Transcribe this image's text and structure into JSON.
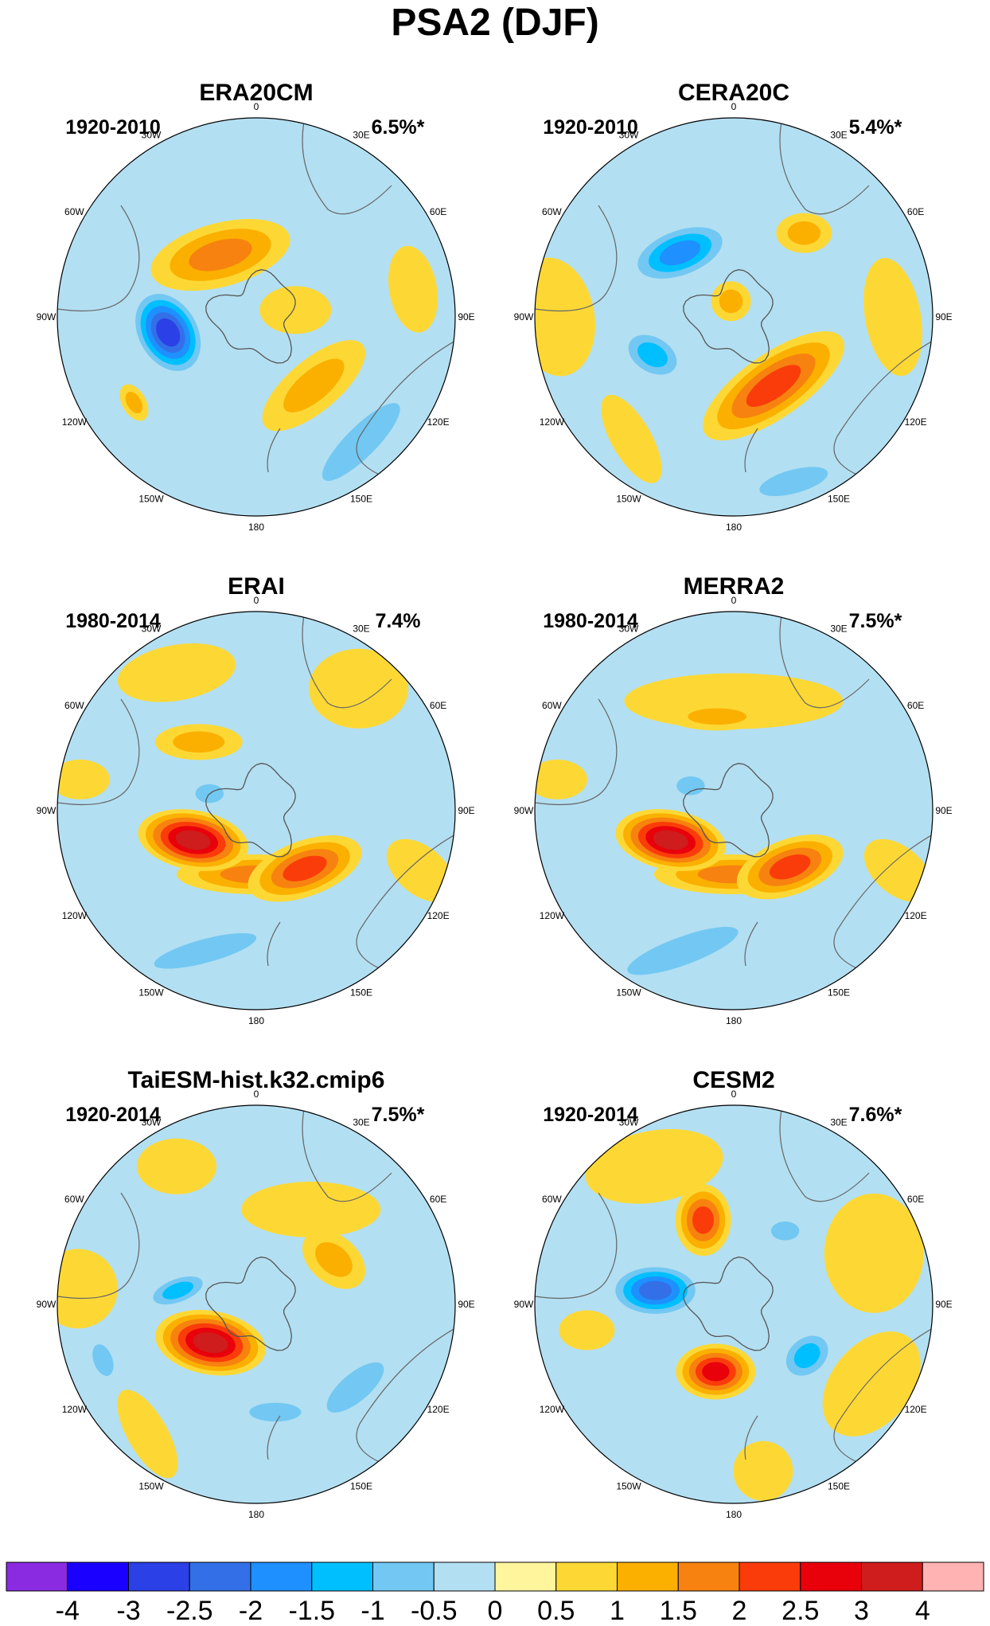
{
  "title": "PSA2 (DJF)",
  "longitude_labels": [
    "0",
    "30E",
    "60E",
    "90E",
    "120E",
    "150E",
    "180",
    "150W",
    "120W",
    "90W",
    "60W",
    "30W"
  ],
  "panels": [
    {
      "name": "ERA20CM",
      "period": "1920-2010",
      "variance": "6.5%*",
      "blobs": [
        {
          "lon": -30,
          "r": 0.36,
          "rx": 0.36,
          "ry": 0.16,
          "rot": -15,
          "v": 1.5
        },
        {
          "lon": 80,
          "r": 0.2,
          "rx": 0.18,
          "ry": 0.12,
          "rot": 0,
          "v": 0.5
        },
        {
          "lon": -100,
          "r": 0.45,
          "rx": 0.24,
          "ry": 0.17,
          "rot": 60,
          "v": -3
        },
        {
          "lon": 140,
          "r": 0.45,
          "rx": 0.32,
          "ry": 0.13,
          "rot": -40,
          "v": 1
        },
        {
          "lon": -125,
          "r": 0.75,
          "rx": 0.1,
          "ry": 0.06,
          "rot": 60,
          "v": 1
        },
        {
          "lon": 140,
          "r": 0.82,
          "rx": 0.45,
          "ry": 0.13,
          "rot": -45,
          "v": -1
        },
        {
          "lon": 80,
          "r": 0.8,
          "rx": 0.22,
          "ry": 0.12,
          "rot": 80,
          "v": 0.5
        }
      ]
    },
    {
      "name": "CERA20C",
      "period": "1920-2010",
      "variance": "5.4%*",
      "blobs": [
        {
          "lon": -40,
          "r": 0.42,
          "rx": 0.28,
          "ry": 0.14,
          "rot": -20,
          "v": -2
        },
        {
          "lon": 40,
          "r": 0.55,
          "rx": 0.14,
          "ry": 0.1,
          "rot": 0,
          "v": 1
        },
        {
          "lon": -115,
          "r": 0.45,
          "rx": 0.18,
          "ry": 0.12,
          "rot": 30,
          "v": -1.5
        },
        {
          "lon": 150,
          "r": 0.4,
          "rx": 0.42,
          "ry": 0.16,
          "rot": -35,
          "v": 2
        },
        {
          "lon": -10,
          "r": 0.08,
          "rx": 0.1,
          "ry": 0.1,
          "rot": 0,
          "v": 1
        },
        {
          "lon": 160,
          "r": 0.88,
          "rx": 0.3,
          "ry": 0.1,
          "rot": -15,
          "v": -1
        },
        {
          "lon": -140,
          "r": 0.8,
          "rx": 0.25,
          "ry": 0.1,
          "rot": 60,
          "v": 0.5
        },
        {
          "lon": -90,
          "r": 0.9,
          "rx": 0.3,
          "ry": 0.2,
          "rot": 80,
          "v": 0.5
        },
        {
          "lon": 90,
          "r": 0.8,
          "rx": 0.3,
          "ry": 0.14,
          "rot": 80,
          "v": 0.5
        }
      ]
    },
    {
      "name": "ERAI",
      "period": "1980-2014",
      "variance": "7.4%",
      "blobs": [
        {
          "lon": -40,
          "r": 0.45,
          "rx": 0.22,
          "ry": 0.09,
          "rot": 0,
          "v": 1
        },
        {
          "lon": -115,
          "r": 0.35,
          "rx": 0.28,
          "ry": 0.15,
          "rot": 10,
          "v": 3
        },
        {
          "lon": 140,
          "r": 0.38,
          "rx": 0.3,
          "ry": 0.14,
          "rot": -20,
          "v": 2
        },
        {
          "lon": 180,
          "r": 0.32,
          "rx": 0.4,
          "ry": 0.1,
          "rot": 0,
          "v": 1.5
        },
        {
          "lon": -30,
          "r": 0.8,
          "rx": 0.3,
          "ry": 0.14,
          "rot": -10,
          "v": 0.5
        },
        {
          "lon": 40,
          "r": 0.8,
          "rx": 0.25,
          "ry": 0.2,
          "rot": 0,
          "v": 0.5
        },
        {
          "lon": -80,
          "r": 0.9,
          "rx": 0.15,
          "ry": 0.1,
          "rot": 0,
          "v": 0.5
        },
        {
          "lon": 110,
          "r": 0.88,
          "rx": 0.2,
          "ry": 0.12,
          "rot": 40,
          "v": 0.5
        },
        {
          "lon": -160,
          "r": 0.75,
          "rx": 0.45,
          "ry": 0.1,
          "rot": -15,
          "v": -1
        },
        {
          "lon": -70,
          "r": 0.25,
          "rx": 0.12,
          "ry": 0.08,
          "rot": 0,
          "v": -1
        }
      ]
    },
    {
      "name": "MERRA2",
      "period": "1980-2014",
      "variance": "7.5%*",
      "blobs": [
        {
          "lon": -10,
          "r": 0.48,
          "rx": 0.25,
          "ry": 0.07,
          "rot": 0,
          "v": 1
        },
        {
          "lon": -115,
          "r": 0.35,
          "rx": 0.28,
          "ry": 0.15,
          "rot": 10,
          "v": 3
        },
        {
          "lon": 135,
          "r": 0.4,
          "rx": 0.28,
          "ry": 0.14,
          "rot": -20,
          "v": 2
        },
        {
          "lon": 180,
          "r": 0.32,
          "rx": 0.4,
          "ry": 0.1,
          "rot": 0,
          "v": 1.5
        },
        {
          "lon": 0,
          "r": 0.55,
          "rx": 0.55,
          "ry": 0.14,
          "rot": 0,
          "v": 0.5
        },
        {
          "lon": -80,
          "r": 0.9,
          "rx": 0.15,
          "ry": 0.1,
          "rot": 0,
          "v": 0.5
        },
        {
          "lon": 110,
          "r": 0.88,
          "rx": 0.2,
          "ry": 0.12,
          "rot": 40,
          "v": 0.5
        },
        {
          "lon": -160,
          "r": 0.75,
          "rx": 0.5,
          "ry": 0.12,
          "rot": -20,
          "v": -1
        },
        {
          "lon": -60,
          "r": 0.25,
          "rx": 0.12,
          "ry": 0.08,
          "rot": 0,
          "v": -1
        }
      ]
    },
    {
      "name": "TaiESM-hist.k32.cmip6",
      "period": "1920-2014",
      "variance": "7.5%*",
      "blobs": [
        {
          "lon": -130,
          "r": 0.3,
          "rx": 0.28,
          "ry": 0.16,
          "rot": 10,
          "v": 3
        },
        {
          "lon": 60,
          "r": 0.45,
          "rx": 0.18,
          "ry": 0.12,
          "rot": 40,
          "v": 1
        },
        {
          "lon": 30,
          "r": 0.55,
          "rx": 0.35,
          "ry": 0.14,
          "rot": 0,
          "v": 0.5
        },
        {
          "lon": -80,
          "r": 0.4,
          "rx": 0.18,
          "ry": 0.08,
          "rot": -20,
          "v": -1.5
        },
        {
          "lon": 170,
          "r": 0.55,
          "rx": 0.22,
          "ry": 0.08,
          "rot": 0,
          "v": -1
        },
        {
          "lon": -110,
          "r": 0.82,
          "rx": 0.14,
          "ry": 0.08,
          "rot": 70,
          "v": -1
        },
        {
          "lon": 130,
          "r": 0.65,
          "rx": 0.3,
          "ry": 0.12,
          "rot": -40,
          "v": -1
        },
        {
          "lon": -85,
          "r": 0.9,
          "rx": 0.2,
          "ry": 0.2,
          "rot": 0,
          "v": 0.5
        },
        {
          "lon": -30,
          "r": 0.8,
          "rx": 0.2,
          "ry": 0.14,
          "rot": 0,
          "v": 0.5
        },
        {
          "lon": -140,
          "r": 0.85,
          "rx": 0.25,
          "ry": 0.1,
          "rot": 60,
          "v": 0.5
        }
      ]
    },
    {
      "name": "CESM2",
      "period": "1920-2014",
      "variance": "7.6%*",
      "blobs": [
        {
          "lon": -20,
          "r": 0.45,
          "rx": 0.14,
          "ry": 0.18,
          "rot": 0,
          "v": 2
        },
        {
          "lon": -80,
          "r": 0.4,
          "rx": 0.24,
          "ry": 0.14,
          "rot": 0,
          "v": -2.5
        },
        {
          "lon": -165,
          "r": 0.35,
          "rx": 0.2,
          "ry": 0.14,
          "rot": 0,
          "v": 2.5
        },
        {
          "lon": 125,
          "r": 0.45,
          "rx": 0.16,
          "ry": 0.12,
          "rot": -40,
          "v": -1.5
        },
        {
          "lon": 35,
          "r": 0.45,
          "rx": 0.12,
          "ry": 0.08,
          "rot": 0,
          "v": -1
        },
        {
          "lon": -30,
          "r": 0.8,
          "rx": 0.35,
          "ry": 0.18,
          "rot": -10,
          "v": 0.5
        },
        {
          "lon": 70,
          "r": 0.75,
          "rx": 0.25,
          "ry": 0.3,
          "rot": 0,
          "v": 0.5
        },
        {
          "lon": 120,
          "r": 0.8,
          "rx": 0.2,
          "ry": 0.3,
          "rot": 40,
          "v": 0.5
        },
        {
          "lon": 170,
          "r": 0.85,
          "rx": 0.15,
          "ry": 0.15,
          "rot": 0,
          "v": 0.5
        },
        {
          "lon": -100,
          "r": 0.75,
          "rx": 0.14,
          "ry": 0.1,
          "rot": 0,
          "v": 0.5
        }
      ]
    }
  ],
  "colorbar": {
    "ticks": [
      "-4",
      "-3",
      "-2.5",
      "-2",
      "-1.5",
      "-1",
      "-0.5",
      "0",
      "0.5",
      "1",
      "1.5",
      "2",
      "2.5",
      "3",
      "4"
    ],
    "levels": [
      -4,
      -3,
      -2.5,
      -2,
      -1.5,
      -1,
      -0.5,
      0,
      0.5,
      1,
      1.5,
      2,
      2.5,
      3,
      4
    ],
    "colors": [
      "#8a2be2",
      "#1a00ff",
      "#2b40e6",
      "#3370e8",
      "#1e90ff",
      "#00bfff",
      "#72c8f2",
      "#b3dff2",
      "#fff59d",
      "#fdd835",
      "#fbb000",
      "#f7820f",
      "#fa3c0a",
      "#e8000b",
      "#cf1c1c",
      "#ffb3b3"
    ]
  }
}
